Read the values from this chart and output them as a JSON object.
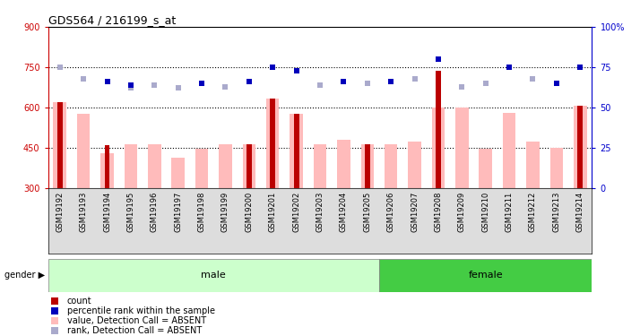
{
  "title": "GDS564 / 216199_s_at",
  "samples": [
    "GSM19192",
    "GSM19193",
    "GSM19194",
    "GSM19195",
    "GSM19196",
    "GSM19197",
    "GSM19198",
    "GSM19199",
    "GSM19200",
    "GSM19201",
    "GSM19202",
    "GSM19203",
    "GSM19204",
    "GSM19205",
    "GSM19206",
    "GSM19207",
    "GSM19208",
    "GSM19209",
    "GSM19210",
    "GSM19211",
    "GSM19212",
    "GSM19213",
    "GSM19214"
  ],
  "gender": [
    "male",
    "male",
    "male",
    "male",
    "male",
    "male",
    "male",
    "male",
    "male",
    "male",
    "male",
    "male",
    "male",
    "male",
    "female",
    "female",
    "female",
    "female",
    "female",
    "female",
    "female",
    "female",
    "female"
  ],
  "count_red": [
    620,
    null,
    460,
    null,
    null,
    null,
    null,
    null,
    465,
    633,
    578,
    null,
    null,
    462,
    null,
    null,
    735,
    null,
    null,
    null,
    null,
    null,
    607
  ],
  "value_pink": [
    620,
    578,
    430,
    462,
    462,
    412,
    447,
    462,
    465,
    633,
    578,
    465,
    480,
    462,
    465,
    472,
    600,
    600,
    447,
    580,
    472,
    450,
    607
  ],
  "rank_blue_dark_pct": [
    null,
    null,
    66,
    64,
    null,
    null,
    65,
    null,
    66,
    75,
    73,
    null,
    66,
    null,
    66,
    null,
    80,
    null,
    null,
    75,
    null,
    65,
    75
  ],
  "rank_blue_light_pct": [
    75,
    68,
    null,
    62,
    64,
    62,
    null,
    63,
    null,
    null,
    null,
    64,
    null,
    65,
    null,
    68,
    null,
    63,
    65,
    null,
    68,
    null,
    null
  ],
  "ylim_left": [
    300,
    900
  ],
  "ylim_right": [
    0,
    100
  ],
  "yticks_left": [
    300,
    450,
    600,
    750,
    900
  ],
  "yticks_right": [
    0,
    25,
    50,
    75,
    100
  ],
  "ytick_labels_right": [
    "0",
    "25",
    "50",
    "75",
    "100%"
  ],
  "hlines": [
    450,
    600,
    750
  ],
  "color_red": "#bb0000",
  "color_pink": "#ffbbbb",
  "color_blue_dark": "#0000bb",
  "color_blue_light": "#aaaacc",
  "color_male_bg": "#ccffcc",
  "color_female_bg": "#44cc44",
  "color_axis_left": "#cc0000",
  "color_axis_right": "#0000cc",
  "color_xtick_bg": "#dddddd"
}
